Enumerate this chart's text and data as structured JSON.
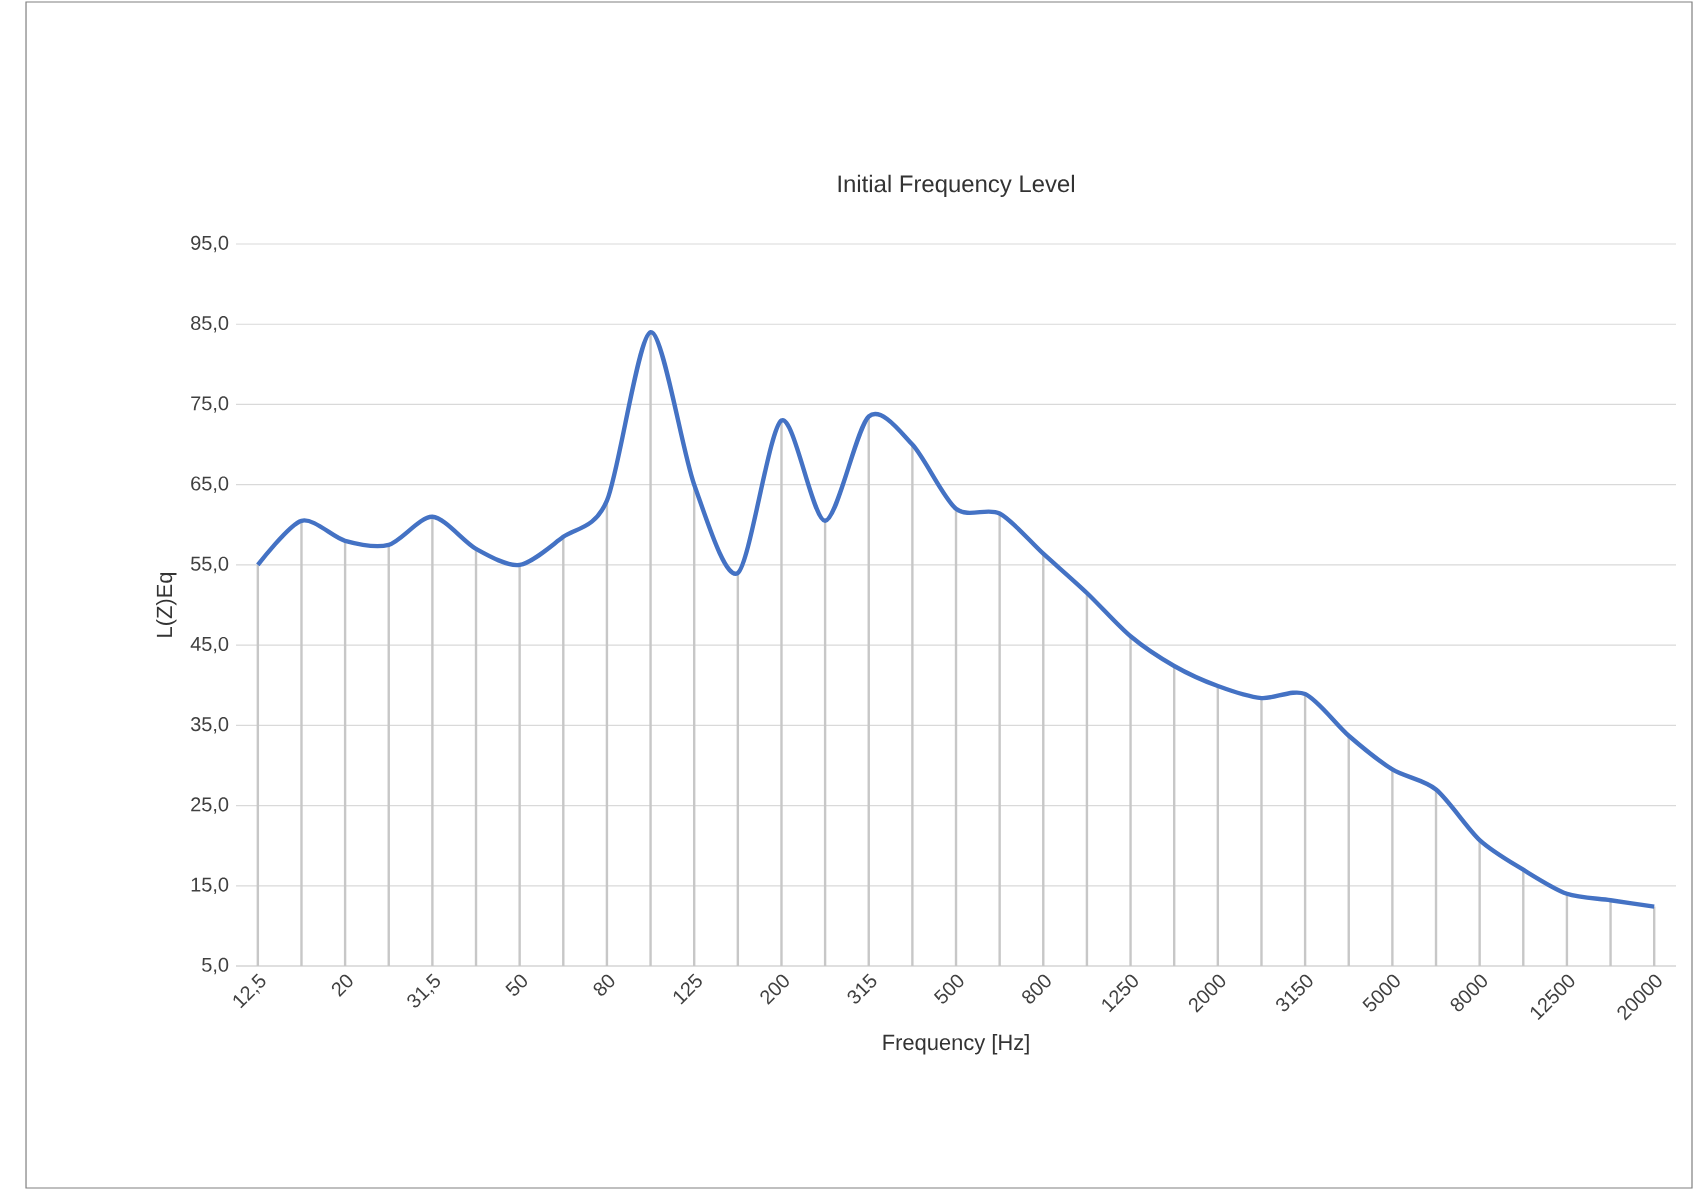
{
  "chart_data": {
    "type": "line",
    "title": "Initial Frequency Level",
    "xlabel": "Frequency [Hz]",
    "ylabel": "L(Z)Eq",
    "categories": [
      "12,5",
      null,
      "20",
      null,
      "31,5",
      null,
      "50",
      null,
      "80",
      null,
      "125",
      null,
      "200",
      null,
      "315",
      null,
      "500",
      null,
      "800",
      null,
      "1250",
      null,
      "2000",
      null,
      "3150",
      null,
      "5000",
      null,
      "8000",
      null,
      "12500",
      null,
      "20000"
    ],
    "series": [
      {
        "type": "bar",
        "color": "#c7c7c7",
        "values": [
          55,
          60.5,
          58,
          57.5,
          61,
          57,
          55,
          58.5,
          63,
          84,
          65,
          54,
          73,
          60.5,
          73.5,
          70,
          62,
          61.4,
          56.4,
          51.5,
          46.1,
          42.4,
          39.9,
          38.4,
          38.9,
          33.7,
          29.5,
          27,
          20.7,
          17,
          14,
          13.2,
          12.4
        ]
      },
      {
        "color": "#4472c4",
        "values": [
          55,
          60.5,
          58,
          57.5,
          61,
          57,
          55,
          58.5,
          63,
          84,
          65,
          54,
          73,
          60.5,
          73.5,
          70,
          62,
          61.4,
          56.4,
          51.5,
          46.1,
          42.4,
          39.9,
          38.4,
          38.9,
          33.7,
          29.5,
          27,
          20.7,
          17,
          14,
          13.2,
          12.4
        ]
      }
    ],
    "ylim": [
      5,
      95
    ],
    "yticks": [
      {
        "value": 5,
        "label": "5,0"
      },
      {
        "value": 15,
        "label": "15,0"
      },
      {
        "value": 25,
        "label": "25,0"
      },
      {
        "value": 35,
        "label": "35,0"
      },
      {
        "value": 45,
        "label": "45,0"
      },
      {
        "value": 55,
        "label": "55,0"
      },
      {
        "value": 65,
        "label": "65,0"
      },
      {
        "value": 75,
        "label": "75,0"
      },
      {
        "value": 85,
        "label": "85,0"
      },
      {
        "value": 95,
        "label": "95,0"
      }
    ],
    "grid": "y",
    "marker": "none",
    "line_style": "solid"
  }
}
